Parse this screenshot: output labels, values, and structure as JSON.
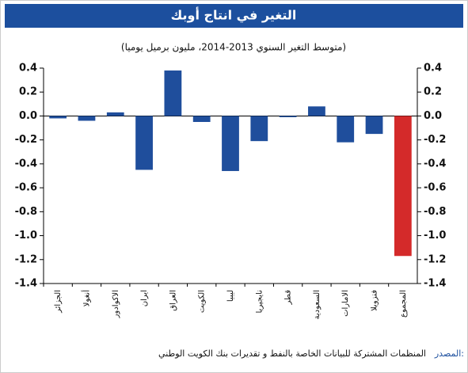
{
  "chart_data": {
    "type": "bar",
    "title": "التغير في انتاج أوبك",
    "subtitle": "(متوسط التغير السنوي 2013-2014، مليون برميل يوميا)",
    "categories": [
      "الجزائر",
      "أنغولا",
      "الاكوادور",
      "ايران",
      "العراق",
      "الكويت",
      "ليبيا",
      "نايجيريا",
      "قطر",
      "السعودية",
      "الامارات",
      "فنزويلا",
      "المجموع"
    ],
    "values": [
      -0.02,
      -0.04,
      0.03,
      -0.45,
      0.38,
      -0.05,
      -0.46,
      -0.21,
      -0.01,
      0.08,
      -0.22,
      -0.15,
      -1.17
    ],
    "colors": [
      "#1f4e9c",
      "#1f4e9c",
      "#1f4e9c",
      "#1f4e9c",
      "#1f4e9c",
      "#1f4e9c",
      "#1f4e9c",
      "#1f4e9c",
      "#1f4e9c",
      "#1f4e9c",
      "#1f4e9c",
      "#1f4e9c",
      "#d42a2a"
    ],
    "ylim": [
      -1.4,
      0.4
    ],
    "yticks": [
      0.4,
      0.2,
      {
        "value": 0,
        "label": "0.0"
      },
      -0.2,
      -0.4,
      -0.6,
      -0.8,
      {
        "value": -1,
        "label": "-1.0"
      },
      -1.2,
      -1.4
    ],
    "source_label": "المصدر:",
    "source": "المنظمات المشتركة للبيانات الخاصة بالنفط و تقديرات بنك الكويت الوطني"
  }
}
